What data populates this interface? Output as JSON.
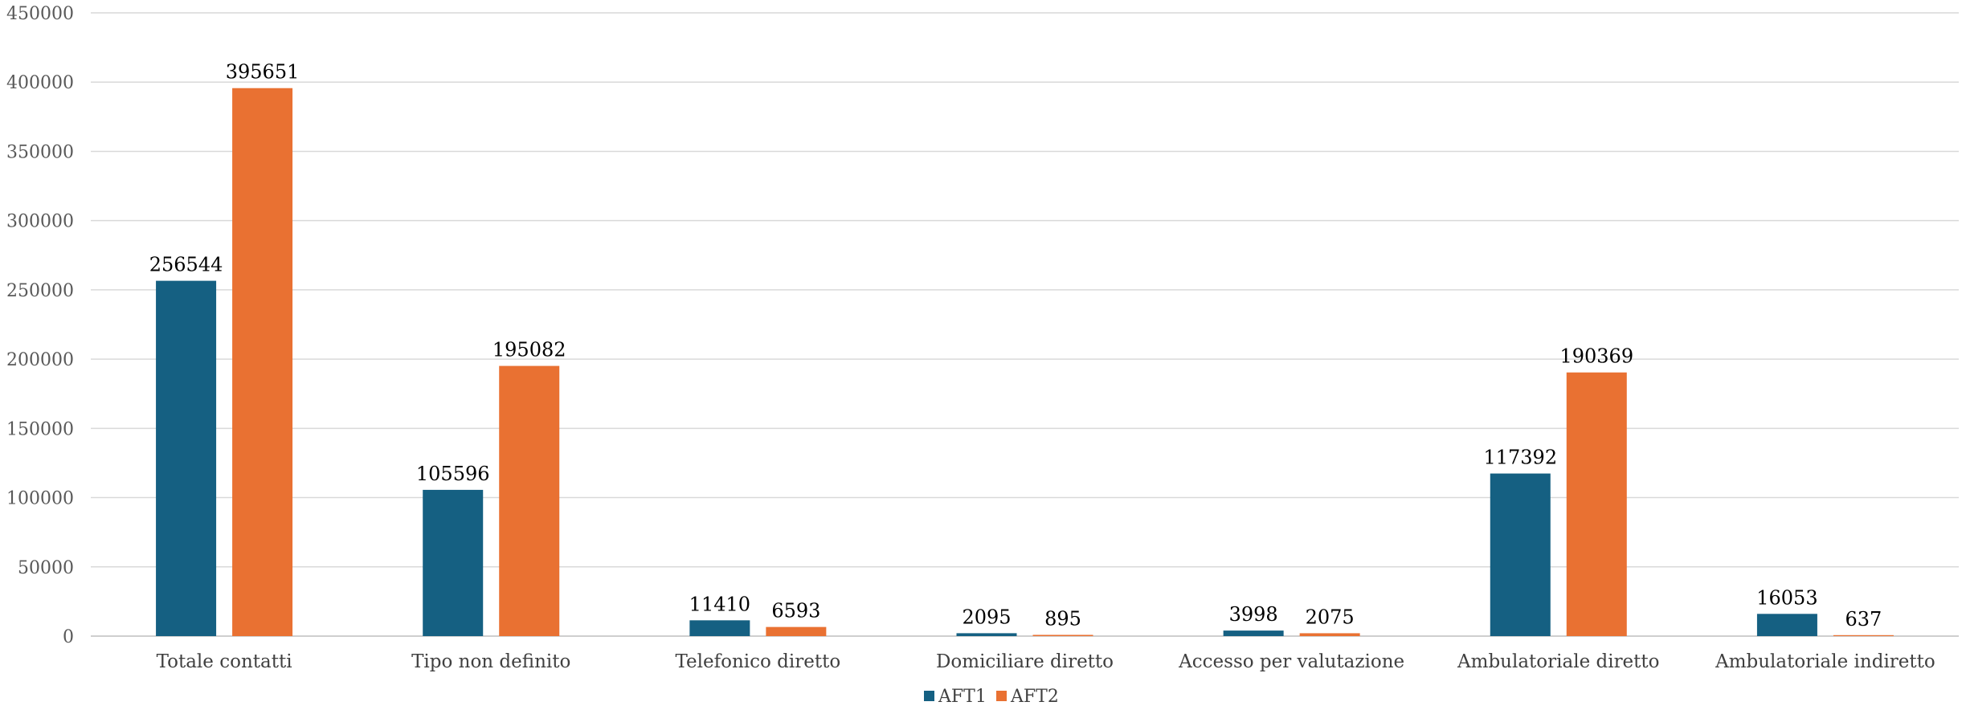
{
  "chart_data": {
    "type": "bar",
    "categories": [
      "Totale contatti",
      "Tipo non definito",
      "Telefonico diretto",
      "Domiciliare diretto",
      "Accesso per valutazione",
      "Ambulatoriale diretto",
      "Ambulatoriale indiretto"
    ],
    "series": [
      {
        "name": "AFT1",
        "color": "#156082",
        "values": [
          256544,
          105596,
          11410,
          2095,
          3998,
          117392,
          16053
        ],
        "labels": [
          "256544",
          "105596",
          "11410",
          "2095",
          "3998",
          "117392",
          "16053"
        ]
      },
      {
        "name": "AFT2",
        "color": "#E97132",
        "values": [
          395651,
          195082,
          6593,
          895,
          2075,
          190369,
          637
        ],
        "labels": [
          "395651",
          "195082",
          "6593",
          "895",
          "2075",
          "190369",
          "637"
        ]
      }
    ],
    "y_ticks": [
      "0",
      "50000",
      "100000",
      "150000",
      "200000",
      "250000",
      "300000",
      "350000",
      "400000",
      "450000"
    ],
    "ylim": [
      0,
      450000
    ],
    "grid": true,
    "legend_position": "bottom",
    "title": "",
    "xlabel": "",
    "ylabel": ""
  }
}
